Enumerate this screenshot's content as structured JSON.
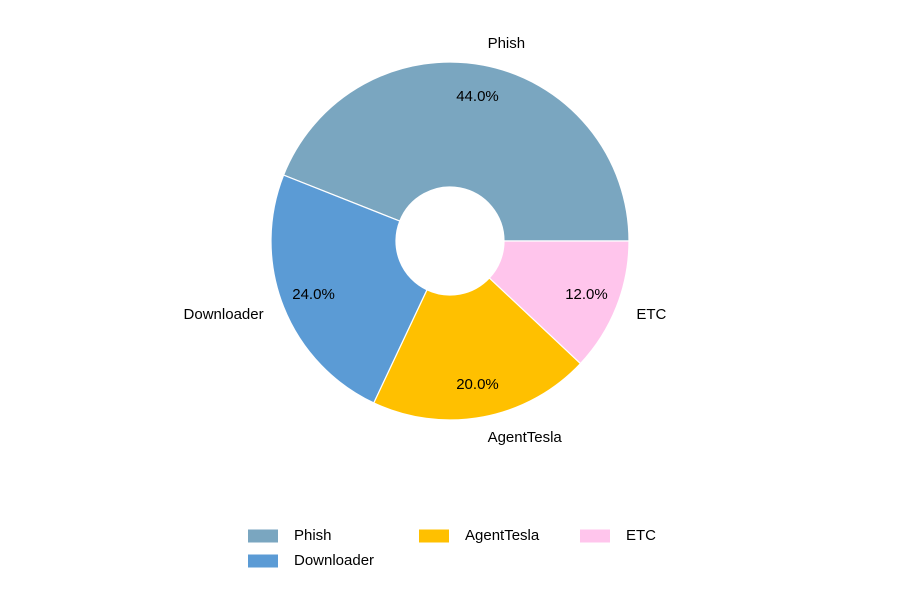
{
  "chart_data": {
    "type": "pie",
    "categories": [
      "Phish",
      "Downloader",
      "AgentTesla",
      "ETC"
    ],
    "values": [
      44,
      24,
      20,
      12
    ],
    "value_labels": [
      "44.0%",
      "24.0%",
      "20.0%",
      "12.0%"
    ],
    "colors": [
      "#7aa6c0",
      "#5b9bd5",
      "#ffc000",
      "#ffc5ec"
    ],
    "legend": "bottom"
  }
}
